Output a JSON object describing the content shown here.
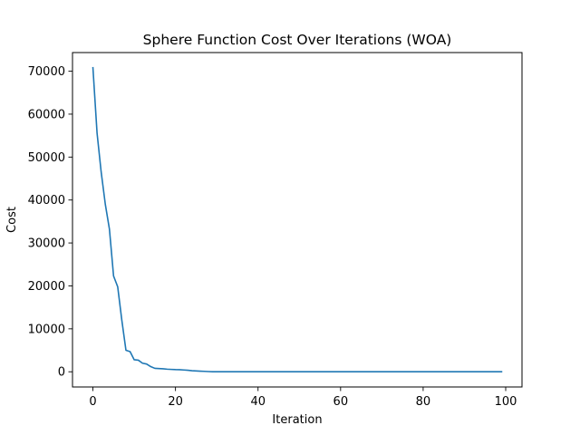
{
  "chart_data": {
    "type": "line",
    "title": "Sphere Function Cost Over Iterations (WOA)",
    "xlabel": "Iteration",
    "ylabel": "Cost",
    "xlim": [
      -4.95,
      103.95
    ],
    "ylim": [
      -3540,
      74340
    ],
    "xticks": [
      0,
      20,
      40,
      60,
      80,
      100
    ],
    "yticks": [
      0,
      10000,
      20000,
      30000,
      40000,
      50000,
      60000,
      70000
    ],
    "grid": false,
    "legend": "none",
    "line_color": "#1f77b4",
    "series": [
      {
        "values": [
          70800,
          55600,
          46500,
          39000,
          33200,
          22300,
          19800,
          12000,
          5000,
          4700,
          2800,
          2700,
          2000,
          1800,
          1200,
          800,
          750,
          700,
          600,
          550,
          500,
          480,
          420,
          350,
          250,
          200,
          150,
          100,
          50,
          0,
          0,
          0,
          0,
          0,
          0,
          0,
          0,
          0,
          0,
          0,
          0,
          0,
          0,
          0,
          0,
          0,
          0,
          0,
          0,
          0,
          0,
          0,
          0,
          0,
          0,
          0,
          0,
          0,
          0,
          0,
          0,
          0,
          0,
          0,
          0,
          0,
          0,
          0,
          0,
          0,
          0,
          0,
          0,
          0,
          0,
          0,
          0,
          0,
          0,
          0,
          0,
          0,
          0,
          0,
          0,
          0,
          0,
          0,
          0,
          0,
          0,
          0,
          0,
          0,
          0,
          0,
          0,
          0,
          0,
          0
        ]
      }
    ]
  }
}
